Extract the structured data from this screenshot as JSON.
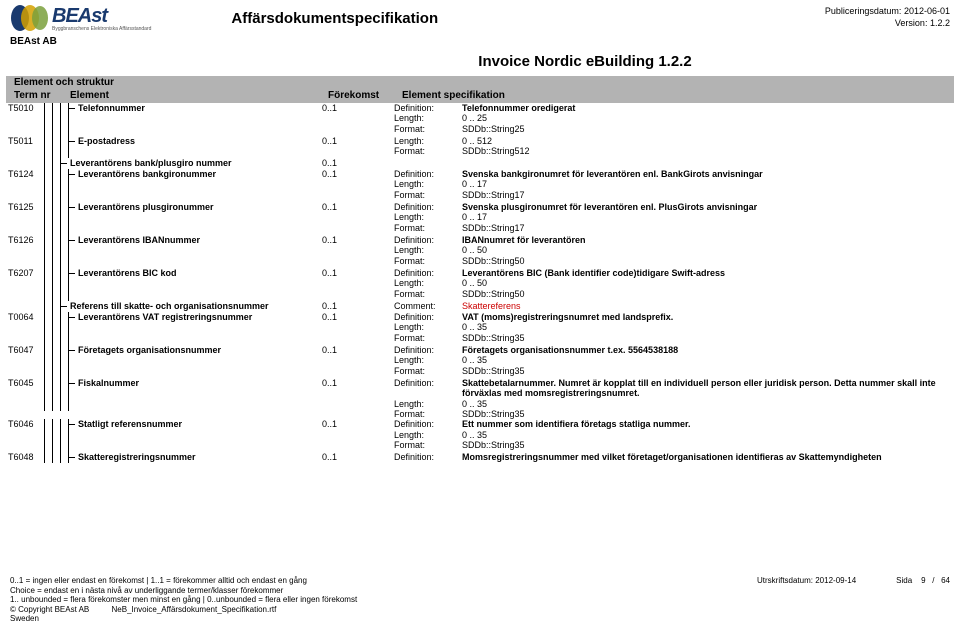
{
  "header": {
    "logo_text": "BEAst",
    "logo_sub": "Byggbranschens Elektroniska Affärsstandard",
    "title": "Affärsdokumentspecifikation",
    "pub_label": "Publiceringsdatum:",
    "pub_date": "2012-06-01",
    "ver_label": "Version:",
    "ver": "1.2.2"
  },
  "company": "BEAst AB",
  "doc_title": "Invoice Nordic eBuilding 1.2.2",
  "section": {
    "struktur": "Element och struktur",
    "termnr": "Term nr",
    "element": "Element",
    "forekomst": "Förekomst",
    "spec": "Element specifikation"
  },
  "rows": [
    {
      "term": "T5010",
      "depth": 4,
      "label": "Telefonnummer",
      "fk": "0..1",
      "spec": [
        {
          "k": "Definition:",
          "v": "Telefonnummer oredigerat",
          "bold": true
        },
        {
          "k": "Length:",
          "v": "0 ..   25"
        },
        {
          "k": "Format:",
          "v": "SDDb::String25"
        }
      ]
    },
    {
      "term": "T5011",
      "depth": 4,
      "label": "E-postadress",
      "fk": "0..1",
      "spec": [
        {
          "k": "Length:",
          "v": "0 ..   512"
        },
        {
          "k": "Format:",
          "v": "SDDb::String512"
        }
      ]
    },
    {
      "term": "",
      "depth": 3,
      "label": "Leverantörens bank/plusgiro nummer",
      "fk": "0..1",
      "spec": []
    },
    {
      "term": "T6124",
      "depth": 4,
      "label": "Leverantörens bankgironummer",
      "fk": "0..1",
      "spec": [
        {
          "k": "Definition:",
          "v": "Svenska bankgironumret för leverantören enl. BankGirots anvisningar",
          "bold": true
        },
        {
          "k": "Length:",
          "v": "0 ..   17"
        },
        {
          "k": "Format:",
          "v": "SDDb::String17"
        }
      ]
    },
    {
      "term": "T6125",
      "depth": 4,
      "label": "Leverantörens plusgironummer",
      "fk": "0..1",
      "spec": [
        {
          "k": "Definition:",
          "v": "Svenska plusgironumret för leverantören enl. PlusGirots anvisningar",
          "bold": true
        },
        {
          "k": "Length:",
          "v": "0 ..   17"
        },
        {
          "k": "Format:",
          "v": "SDDb::String17"
        }
      ]
    },
    {
      "term": "T6126",
      "depth": 4,
      "label": "Leverantörens IBANnummer",
      "fk": "0..1",
      "spec": [
        {
          "k": "Definition:",
          "v": "IBANnumret för leverantören",
          "bold": true
        },
        {
          "k": "Length:",
          "v": "0 ..   50"
        },
        {
          "k": "Format:",
          "v": "SDDb::String50"
        }
      ]
    },
    {
      "term": "T6207",
      "depth": 4,
      "label": "Leverantörens BIC kod",
      "fk": "0..1",
      "spec": [
        {
          "k": "Definition:",
          "v": "Leverantörens BIC (Bank identifier code)tidigare Swift-adress",
          "bold": true
        },
        {
          "k": "Length:",
          "v": "0 ..   50"
        },
        {
          "k": "Format:",
          "v": "SDDb::String50"
        }
      ]
    },
    {
      "term": "",
      "depth": 3,
      "label": "Referens till skatte- och organisationsnummer",
      "fk": "0..1",
      "spec": [
        {
          "k": "Comment:",
          "v": "Skattereferens",
          "red": true
        }
      ]
    },
    {
      "term": "T0064",
      "depth": 4,
      "label": "Leverantörens VAT registreringsnummer",
      "fk": "0..1",
      "spec": [
        {
          "k": "Definition:",
          "v": "VAT (moms)registreringsnumret med landsprefix.",
          "bold": true
        },
        {
          "k": "Length:",
          "v": "0 ..   35"
        },
        {
          "k": "Format:",
          "v": "SDDb::String35"
        }
      ]
    },
    {
      "term": "T6047",
      "depth": 4,
      "label": "Företagets organisationsnummer",
      "fk": "0..1",
      "spec": [
        {
          "k": "Definition:",
          "v": "Företagets organisationsnummer t.ex. 5564538188",
          "bold": true
        },
        {
          "k": "Length:",
          "v": "0 ..   35"
        },
        {
          "k": "Format:",
          "v": "SDDb::String35"
        }
      ]
    },
    {
      "term": "T6045",
      "depth": 4,
      "label": "Fiskalnummer",
      "fk": "0..1",
      "spec": [
        {
          "k": "Definition:",
          "v": "Skattebetalarnummer. Numret är kopplat till en individuell person eller juridisk person. Detta nummer skall inte förväxlas med momsregistreringsnumret.",
          "bold": true
        },
        {
          "k": "Length:",
          "v": "0 ..   35"
        },
        {
          "k": "Format:",
          "v": "SDDb::String35"
        }
      ]
    },
    {
      "term": "T6046",
      "depth": 4,
      "label": "Statligt referensnummer",
      "fk": "0..1",
      "spec": [
        {
          "k": "Definition:",
          "v": "Ett nummer som identifiera företags statliga nummer.",
          "bold": true
        },
        {
          "k": "Length:",
          "v": "0 ..   35"
        },
        {
          "k": "Format:",
          "v": "SDDb::String35"
        }
      ]
    },
    {
      "term": "T6048",
      "depth": 4,
      "label": "Skatteregistreringsnummer",
      "fk": "0..1",
      "spec": [
        {
          "k": "Definition:",
          "v": "Momsregistreringsnummer med vilket företaget/organisationen identifieras av Skattemyndigheten",
          "bold": true
        }
      ]
    }
  ],
  "footer": {
    "l1": "0..1 = ingen eller endast en förekomst | 1..1 = förekommer alltid och endast en gång",
    "l2": "Choice = endast en i nästa nivå av underliggande termer/klasser förekommer",
    "l3": "1.. unbounded = flera förekomster men minst en gång | 0..unbounded = flera eller ingen förekomst",
    "l4": "© Copyright BEAst AB",
    "l4b": "NeB_Invoice_Affärsdokument_Specifikation.rtf",
    "l5": "Sweden",
    "print_label": "Utrskriftsdatum:",
    "print_date": "2012-09-14",
    "page_label": "Sida",
    "page": "9",
    "page_sep": "/",
    "pages": "64"
  }
}
